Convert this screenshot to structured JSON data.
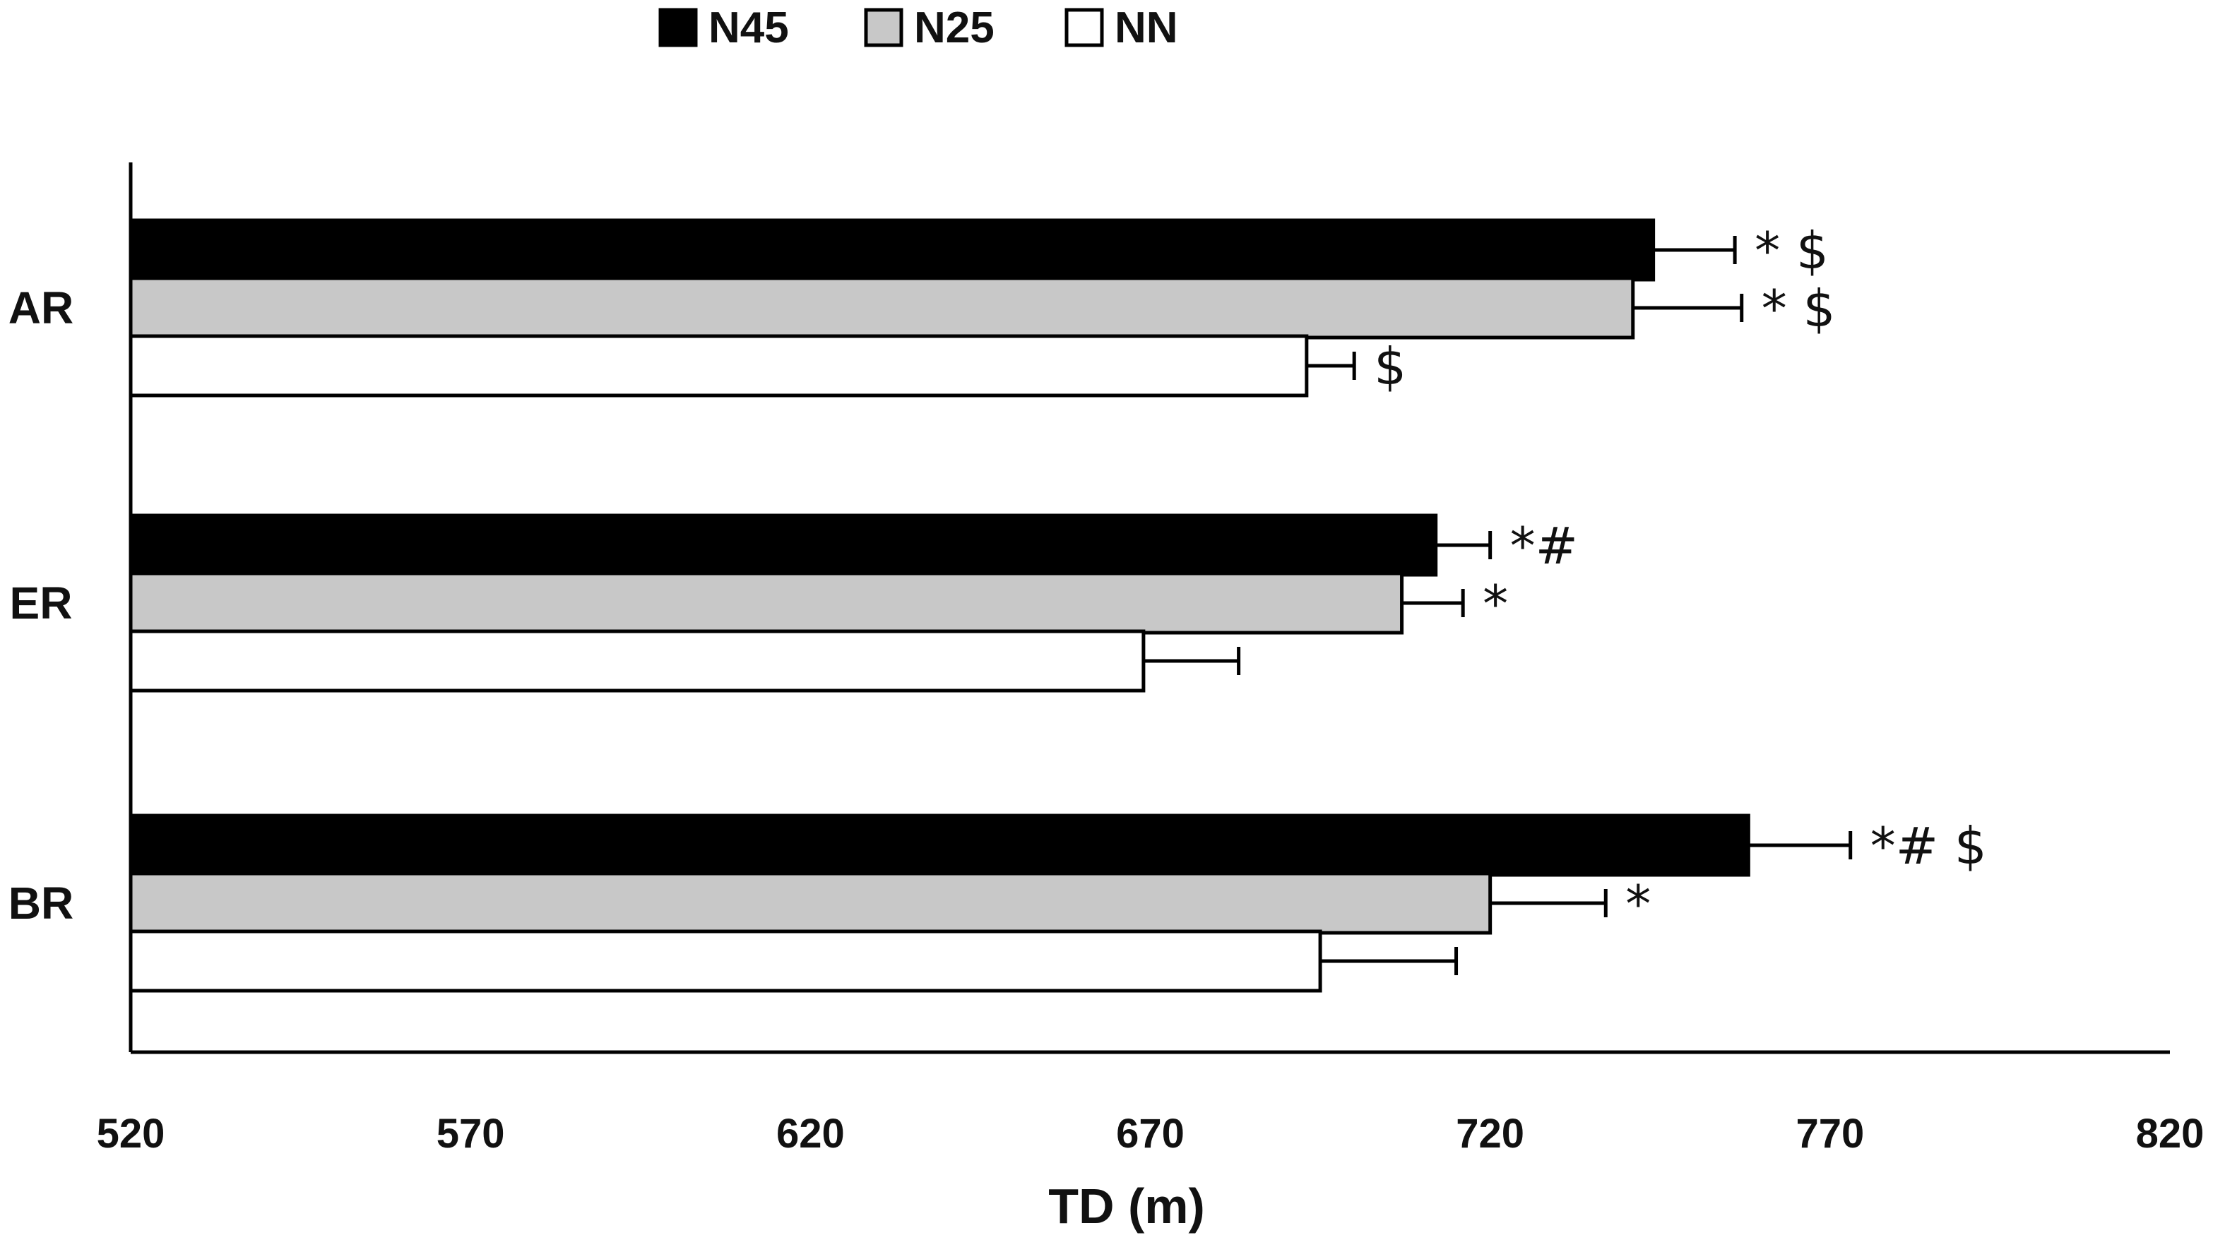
{
  "chart_data": {
    "type": "bar",
    "orientation": "horizontal",
    "title": "",
    "xlabel": "TD (m)",
    "ylabel": "",
    "xlim": [
      520,
      820
    ],
    "xticks": [
      "520",
      "570",
      "620",
      "670",
      "720",
      "770",
      "820"
    ],
    "categories": [
      "AR",
      "ER",
      "BR"
    ],
    "series": [
      {
        "name": "N45",
        "color": "#000000",
        "values": [
          744,
          712,
          758
        ],
        "errors": [
          12,
          8,
          15
        ],
        "annotations": [
          "* $",
          "*#",
          "*# $"
        ]
      },
      {
        "name": "N25",
        "color": "#c8c8c8",
        "values": [
          741,
          707,
          720
        ],
        "errors": [
          16,
          9,
          17
        ],
        "annotations": [
          "* $",
          "*",
          "*"
        ]
      },
      {
        "name": "NN",
        "color": "#ffffff",
        "values": [
          693,
          669,
          695
        ],
        "errors": [
          7,
          14,
          20
        ],
        "annotations": [
          "$",
          "",
          ""
        ]
      }
    ],
    "legend_position": "top",
    "grid": false
  }
}
